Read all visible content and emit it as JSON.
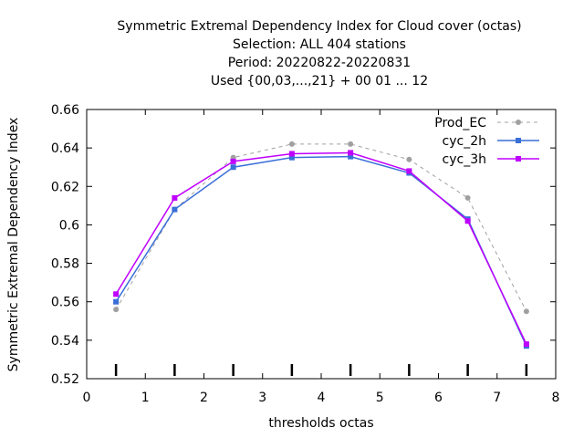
{
  "chart_data": {
    "type": "line",
    "title_lines": [
      "Symmetric Extremal Dependency Index  for Cloud cover (octas)",
      "Selection: ALL    404 stations",
      "Period: 20220822-20220831",
      "Used {00,03,...,21} + 00 01 ... 12"
    ],
    "xlabel": "thresholds octas",
    "ylabel": "Symmetric Extremal Dependency Index",
    "xlim": [
      0,
      8
    ],
    "ylim": [
      0.52,
      0.66
    ],
    "x_ticks": [
      "0",
      "1",
      "2",
      "3",
      "4",
      "5",
      "6",
      "7",
      "8"
    ],
    "y_ticks": [
      "0.52",
      "0.54",
      "0.56",
      "0.58",
      "0.6",
      "0.62",
      "0.64",
      "0.66"
    ],
    "x": [
      0.5,
      1.5,
      2.5,
      3.5,
      4.5,
      5.5,
      6.5,
      7.5
    ],
    "legend_position": "top-right",
    "series": [
      {
        "name": "Prod_EC",
        "color": "#a0a0a0",
        "dashed": true,
        "values": [
          0.556,
          0.608,
          0.635,
          0.642,
          0.642,
          0.634,
          0.614,
          0.555
        ]
      },
      {
        "name": "cyc_2h",
        "color": "#3a6fd8",
        "dashed": false,
        "values": [
          0.56,
          0.608,
          0.63,
          0.635,
          0.6355,
          0.627,
          0.603,
          0.537
        ]
      },
      {
        "name": "cyc_3h",
        "color": "#c000ff",
        "dashed": false,
        "values": [
          0.564,
          0.614,
          0.633,
          0.637,
          0.6375,
          0.628,
          0.602,
          0.538
        ]
      }
    ]
  }
}
